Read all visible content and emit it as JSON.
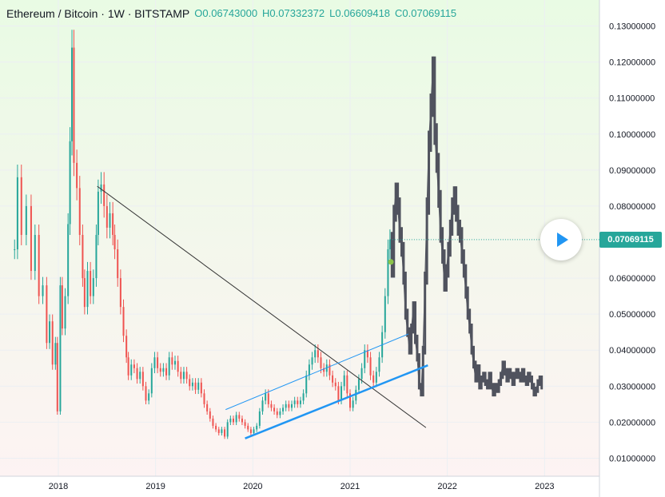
{
  "header": {
    "symbol": "Ethereum / Bitcoin · 1W · BITSTAMP",
    "open": "O0.06743000",
    "high": "H0.07332372",
    "low": "L0.06609418",
    "close": "C0.07069115"
  },
  "price_tag": "0.07069115",
  "colors": {
    "up": "#26a69a",
    "down": "#ef5350",
    "projection": "#50535e",
    "trend_line": "#2196f3",
    "down_trend": "#333333",
    "background_top": "#e9fbe4",
    "background_bottom": "#fdf3f3"
  },
  "icons": {
    "play": "play-icon"
  },
  "chart_data": {
    "type": "candlestick",
    "title": "",
    "x_ticks": [
      "2018",
      "2019",
      "2020",
      "2021",
      "2022",
      "2023"
    ],
    "y_ticks": [
      "0.13000000",
      "0.12000000",
      "0.11000000",
      "0.10000000",
      "0.09000000",
      "0.08000000",
      "0.06000000",
      "0.05000000",
      "0.04000000",
      "0.03000000",
      "0.02000000",
      "0.01000000"
    ],
    "ylim": [
      0.005,
      0.135
    ],
    "xlim": [
      2017.4,
      2023.4
    ],
    "last_price": 0.07069115,
    "series": [
      {
        "name": "",
        "kind": "price",
        "points": [
          [
            2017.55,
            0.068
          ],
          [
            2017.58,
            0.088
          ],
          [
            2017.62,
            0.072
          ],
          [
            2017.67,
            0.08
          ],
          [
            2017.72,
            0.062
          ],
          [
            2017.76,
            0.072
          ],
          [
            2017.8,
            0.055
          ],
          [
            2017.84,
            0.058
          ],
          [
            2017.88,
            0.042
          ],
          [
            2017.91,
            0.048
          ],
          [
            2017.94,
            0.036
          ],
          [
            2017.97,
            0.042
          ],
          [
            2017.99,
            0.023
          ],
          [
            2018.02,
            0.058
          ],
          [
            2018.04,
            0.046
          ],
          [
            2018.07,
            0.055
          ],
          [
            2018.1,
            0.075
          ],
          [
            2018.12,
            0.098
          ],
          [
            2018.14,
            0.124
          ],
          [
            2018.16,
            0.092
          ],
          [
            2018.19,
            0.085
          ],
          [
            2018.22,
            0.072
          ],
          [
            2018.25,
            0.06
          ],
          [
            2018.27,
            0.052
          ],
          [
            2018.3,
            0.062
          ],
          [
            2018.33,
            0.055
          ],
          [
            2018.36,
            0.06
          ],
          [
            2018.39,
            0.072
          ],
          [
            2018.41,
            0.084
          ],
          [
            2018.44,
            0.086
          ],
          [
            2018.47,
            0.08
          ],
          [
            2018.5,
            0.074
          ],
          [
            2018.53,
            0.078
          ],
          [
            2018.56,
            0.072
          ],
          [
            2018.58,
            0.068
          ],
          [
            2018.61,
            0.06
          ],
          [
            2018.64,
            0.052
          ],
          [
            2018.67,
            0.044
          ],
          [
            2018.7,
            0.038
          ],
          [
            2018.72,
            0.033
          ],
          [
            2018.75,
            0.036
          ],
          [
            2018.78,
            0.035
          ],
          [
            2018.81,
            0.032
          ],
          [
            2018.84,
            0.034
          ],
          [
            2018.87,
            0.03
          ],
          [
            2018.9,
            0.026
          ],
          [
            2018.93,
            0.028
          ],
          [
            2018.96,
            0.035
          ],
          [
            2018.99,
            0.038
          ],
          [
            2019.02,
            0.035
          ],
          [
            2019.05,
            0.034
          ],
          [
            2019.08,
            0.035
          ],
          [
            2019.11,
            0.033
          ],
          [
            2019.14,
            0.038
          ],
          [
            2019.17,
            0.036
          ],
          [
            2019.2,
            0.037
          ],
          [
            2019.23,
            0.034
          ],
          [
            2019.26,
            0.032
          ],
          [
            2019.29,
            0.034
          ],
          [
            2019.32,
            0.032
          ],
          [
            2019.35,
            0.03
          ],
          [
            2019.38,
            0.031
          ],
          [
            2019.41,
            0.029
          ],
          [
            2019.44,
            0.031
          ],
          [
            2019.47,
            0.028
          ],
          [
            2019.5,
            0.025
          ],
          [
            2019.53,
            0.023
          ],
          [
            2019.56,
            0.021
          ],
          [
            2019.59,
            0.019
          ],
          [
            2019.62,
            0.018
          ],
          [
            2019.65,
            0.017
          ],
          [
            2019.68,
            0.018
          ],
          [
            2019.71,
            0.016
          ],
          [
            2019.74,
            0.02
          ],
          [
            2019.77,
            0.021
          ],
          [
            2019.8,
            0.02
          ],
          [
            2019.83,
            0.022
          ],
          [
            2019.86,
            0.021
          ],
          [
            2019.89,
            0.02
          ],
          [
            2019.92,
            0.019
          ],
          [
            2019.95,
            0.018
          ],
          [
            2019.98,
            0.017
          ],
          [
            2020.01,
            0.018
          ],
          [
            2020.04,
            0.019
          ],
          [
            2020.07,
            0.023
          ],
          [
            2020.1,
            0.026
          ],
          [
            2020.13,
            0.028
          ],
          [
            2020.16,
            0.025
          ],
          [
            2020.19,
            0.024
          ],
          [
            2020.22,
            0.023
          ],
          [
            2020.25,
            0.022
          ],
          [
            2020.28,
            0.023
          ],
          [
            2020.31,
            0.024
          ],
          [
            2020.34,
            0.025
          ],
          [
            2020.37,
            0.024
          ],
          [
            2020.4,
            0.025
          ],
          [
            2020.43,
            0.026
          ],
          [
            2020.46,
            0.025
          ],
          [
            2020.49,
            0.026
          ],
          [
            2020.52,
            0.028
          ],
          [
            2020.55,
            0.033
          ],
          [
            2020.58,
            0.036
          ],
          [
            2020.61,
            0.038
          ],
          [
            2020.64,
            0.04
          ],
          [
            2020.67,
            0.038
          ],
          [
            2020.7,
            0.035
          ],
          [
            2020.73,
            0.034
          ],
          [
            2020.76,
            0.036
          ],
          [
            2020.79,
            0.033
          ],
          [
            2020.82,
            0.031
          ],
          [
            2020.85,
            0.03
          ],
          [
            2020.88,
            0.026
          ],
          [
            2020.91,
            0.03
          ],
          [
            2020.94,
            0.033
          ],
          [
            2020.97,
            0.028
          ],
          [
            2021.0,
            0.024
          ],
          [
            2021.03,
            0.026
          ],
          [
            2021.06,
            0.029
          ],
          [
            2021.09,
            0.032
          ],
          [
            2021.12,
            0.035
          ],
          [
            2021.15,
            0.04
          ],
          [
            2021.18,
            0.038
          ],
          [
            2021.21,
            0.033
          ],
          [
            2021.24,
            0.031
          ],
          [
            2021.27,
            0.034
          ],
          [
            2021.3,
            0.038
          ],
          [
            2021.33,
            0.045
          ],
          [
            2021.36,
            0.055
          ],
          [
            2021.39,
            0.068
          ],
          [
            2021.41,
            0.0707
          ]
        ]
      },
      {
        "name": "",
        "kind": "projection",
        "points": [
          [
            2021.43,
            0.062
          ],
          [
            2021.45,
            0.078
          ],
          [
            2021.47,
            0.084
          ],
          [
            2021.49,
            0.08
          ],
          [
            2021.51,
            0.072
          ],
          [
            2021.53,
            0.068
          ],
          [
            2021.55,
            0.06
          ],
          [
            2021.57,
            0.05
          ],
          [
            2021.59,
            0.045
          ],
          [
            2021.61,
            0.04
          ],
          [
            2021.63,
            0.046
          ],
          [
            2021.65,
            0.052
          ],
          [
            2021.67,
            0.043
          ],
          [
            2021.69,
            0.038
          ],
          [
            2021.71,
            0.03
          ],
          [
            2021.73,
            0.028
          ],
          [
            2021.75,
            0.04
          ],
          [
            2021.77,
            0.06
          ],
          [
            2021.79,
            0.08
          ],
          [
            2021.81,
            0.098
          ],
          [
            2021.83,
            0.108
          ],
          [
            2021.85,
            0.118
          ],
          [
            2021.87,
            0.1
          ],
          [
            2021.89,
            0.092
          ],
          [
            2021.91,
            0.082
          ],
          [
            2021.93,
            0.072
          ],
          [
            2021.95,
            0.066
          ],
          [
            2021.97,
            0.058
          ],
          [
            2021.99,
            0.062
          ],
          [
            2022.01,
            0.068
          ],
          [
            2022.03,
            0.074
          ],
          [
            2022.05,
            0.08
          ],
          [
            2022.07,
            0.083
          ],
          [
            2022.09,
            0.078
          ],
          [
            2022.11,
            0.074
          ],
          [
            2022.13,
            0.072
          ],
          [
            2022.15,
            0.066
          ],
          [
            2022.17,
            0.062
          ],
          [
            2022.19,
            0.056
          ],
          [
            2022.21,
            0.05
          ],
          [
            2022.23,
            0.046
          ],
          [
            2022.25,
            0.04
          ],
          [
            2022.27,
            0.036
          ],
          [
            2022.29,
            0.032
          ],
          [
            2022.31,
            0.035
          ],
          [
            2022.33,
            0.03
          ],
          [
            2022.35,
            0.032
          ],
          [
            2022.37,
            0.033
          ],
          [
            2022.39,
            0.031
          ],
          [
            2022.41,
            0.03
          ],
          [
            2022.43,
            0.033
          ],
          [
            2022.45,
            0.03
          ],
          [
            2022.47,
            0.028
          ],
          [
            2022.49,
            0.03
          ],
          [
            2022.51,
            0.029
          ],
          [
            2022.53,
            0.031
          ],
          [
            2022.55,
            0.033
          ],
          [
            2022.57,
            0.036
          ],
          [
            2022.59,
            0.034
          ],
          [
            2022.61,
            0.032
          ],
          [
            2022.63,
            0.034
          ],
          [
            2022.65,
            0.033
          ],
          [
            2022.67,
            0.031
          ],
          [
            2022.69,
            0.033
          ],
          [
            2022.71,
            0.034
          ],
          [
            2022.73,
            0.033
          ],
          [
            2022.75,
            0.032
          ],
          [
            2022.77,
            0.034
          ],
          [
            2022.79,
            0.032
          ],
          [
            2022.81,
            0.031
          ],
          [
            2022.83,
            0.033
          ],
          [
            2022.85,
            0.032
          ],
          [
            2022.87,
            0.03
          ],
          [
            2022.89,
            0.028
          ],
          [
            2022.91,
            0.029
          ],
          [
            2022.93,
            0.031
          ],
          [
            2022.95,
            0.032
          ],
          [
            2022.97,
            0.03
          ]
        ]
      }
    ],
    "annotations": [
      {
        "kind": "line",
        "name": "downtrend",
        "from": [
          2018.4,
          0.0855
        ],
        "to": [
          2021.78,
          0.0185
        ]
      },
      {
        "kind": "line",
        "name": "channel-upper",
        "from": [
          2019.72,
          0.0235
        ],
        "to": [
          2021.6,
          0.0445
        ]
      },
      {
        "kind": "line",
        "name": "channel-lower",
        "from": [
          2019.92,
          0.0155
        ],
        "to": [
          2021.8,
          0.0358
        ]
      }
    ]
  }
}
